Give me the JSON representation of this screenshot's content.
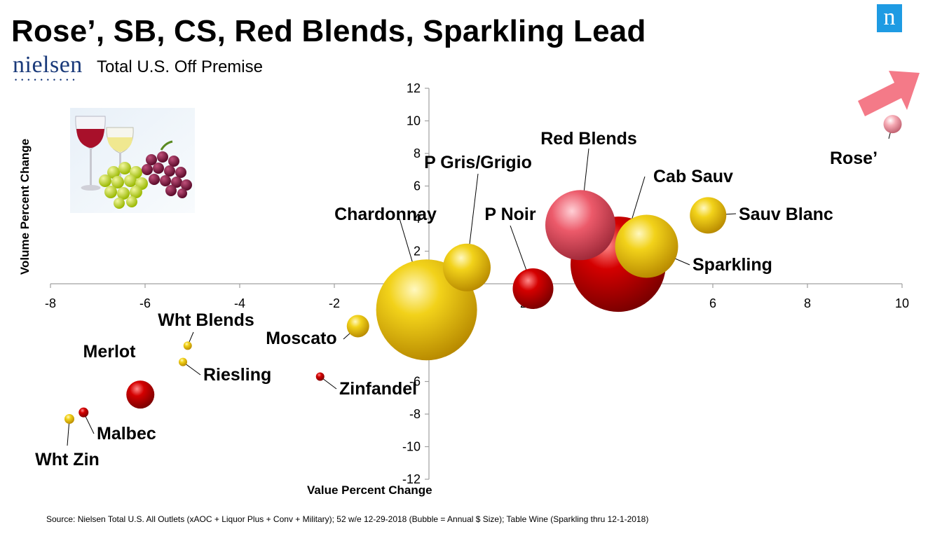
{
  "header": {
    "title": "Rose’, SB, CS, Red Blends, Sparkling Lead",
    "logo_wordmark": "nielsen",
    "subtitle": "Total U.S. Off Premise",
    "brand_badge": "n"
  },
  "footer": {
    "source": "Source:  Nielsen Total U.S. All Outlets (xAOC + Liquor Plus + Conv + Military); 52 w/e  12-29-2018  (Bubble = Annual $ Size); Table Wine (Sparkling thru 12-1-2018)"
  },
  "colors": {
    "red": "#cc0000",
    "gold": "#e8b800",
    "pink": "#e85a6a",
    "rose": "#f2a0aa",
    "arrow": "#f47a88",
    "brand": "#1e9be3"
  },
  "icons": {
    "hero_image": "wine-glasses-grapes-image",
    "trend_arrow": "arrow-up-right-icon"
  },
  "chart_data": {
    "type": "bubble",
    "xlabel": "Value Percent Change",
    "ylabel": "Volume Percent Change",
    "xlim": [
      -8,
      10
    ],
    "ylim": [
      -12,
      12
    ],
    "xticks": [
      "-8",
      "-6",
      "-4",
      "-2",
      "0",
      "2",
      "4",
      "6",
      "8",
      "10"
    ],
    "yticks": [
      "12",
      "10",
      "8",
      "6",
      "4",
      "2",
      "0",
      "-2",
      "-4",
      "-6",
      "-8",
      "-10",
      "-12"
    ],
    "grid": false,
    "series": [
      {
        "label": "Chardonnay",
        "x": -0.05,
        "y": -1.6,
        "size": 72,
        "color": "gold"
      },
      {
        "label": "Cab Sauv",
        "x": 4.0,
        "y": 1.2,
        "size": 68,
        "color": "red"
      },
      {
        "label": "Red Blends",
        "x": 3.2,
        "y": 3.6,
        "size": 50,
        "color": "pink"
      },
      {
        "label": "Sparkling",
        "x": 4.6,
        "y": 2.3,
        "size": 45,
        "color": "gold"
      },
      {
        "label": "P Gris/Grigio",
        "x": 0.8,
        "y": 1.0,
        "size": 34,
        "color": "gold"
      },
      {
        "label": "P Noir",
        "x": 2.2,
        "y": -0.3,
        "size": 29,
        "color": "red"
      },
      {
        "label": "Sauv Blanc",
        "x": 5.9,
        "y": 4.2,
        "size": 26,
        "color": "gold"
      },
      {
        "label": "Merlot",
        "x": -6.1,
        "y": -6.8,
        "size": 20,
        "color": "red"
      },
      {
        "label": "Moscato",
        "x": -1.5,
        "y": -2.6,
        "size": 16,
        "color": "gold"
      },
      {
        "label": "Rose’",
        "x": 9.8,
        "y": 9.8,
        "size": 13,
        "color": "rose"
      },
      {
        "label": "Zinfandel",
        "x": -2.3,
        "y": -5.7,
        "size": 6,
        "color": "red"
      },
      {
        "label": "Malbec",
        "x": -7.3,
        "y": -7.9,
        "size": 7,
        "color": "red"
      },
      {
        "label": "Wht Zin",
        "x": -7.6,
        "y": -8.3,
        "size": 7,
        "color": "gold"
      },
      {
        "label": "Wht Blends",
        "x": -5.1,
        "y": -3.8,
        "size": 6,
        "color": "gold"
      },
      {
        "label": "Riesling",
        "x": -5.2,
        "y": -4.8,
        "size": 6,
        "color": "gold"
      }
    ]
  }
}
